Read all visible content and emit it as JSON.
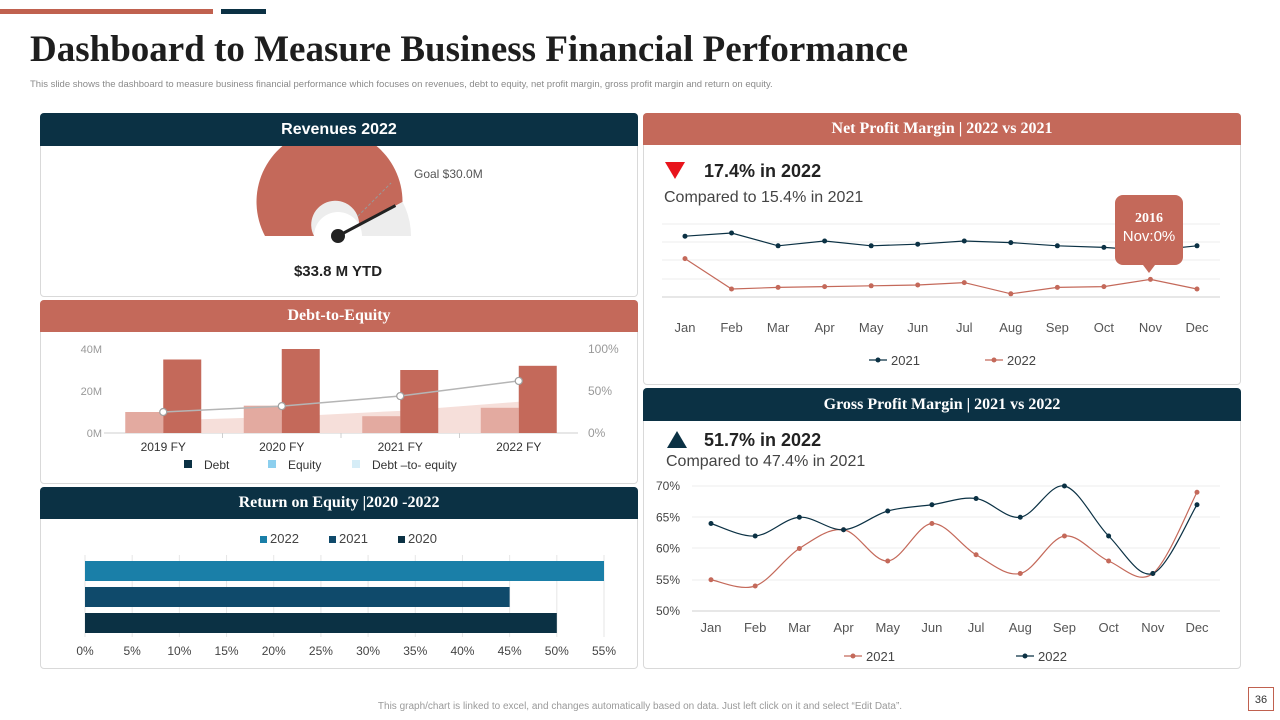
{
  "header": {
    "title": "Dashboard to Measure Business Financial Performance",
    "subtitle": "This slide shows the dashboard to measure business financial performance which focuses on revenues, debt to equity, net profit margin, gross profit margin and return on equity."
  },
  "footer": {
    "note": "This graph/chart is linked to excel, and changes automatically based on data. Just left click on it and select “Edit Data”.",
    "page_number": "36"
  },
  "colors": {
    "navy": "#0b3144",
    "rust": "#c4695a",
    "light_rust": "#e3aaa0",
    "pale_rust": "#f2d6d0",
    "blue": "#1a7fa8",
    "mid_navy": "#0f4a6b",
    "gray": "#ededed"
  },
  "revenues": {
    "heading": "Revenues 2022",
    "goal_label": "Goal $30.0M",
    "ytd_label": "$33.8 M YTD",
    "gauge_value": 33.8,
    "gauge_max": 40,
    "goal_value": 30.0
  },
  "debt_equity": {
    "heading": "Debt-to-Equity",
    "chart_data": {
      "type": "bar",
      "categories": [
        "2019 FY",
        "2020 FY",
        "2021 FY",
        "2022 FY"
      ],
      "series": [
        {
          "name": "Debt",
          "values": [
            35,
            40,
            30,
            32
          ]
        },
        {
          "name": "Equity",
          "values": [
            10,
            13,
            8,
            12
          ]
        },
        {
          "name": "Debt –to- equity",
          "values": [
            25,
            32,
            44,
            62
          ],
          "axis": "right"
        }
      ],
      "left_axis": {
        "ticks": [
          "0M",
          "20M",
          "40M"
        ],
        "ylim": [
          0,
          40
        ]
      },
      "right_axis": {
        "ticks": [
          "0%",
          "50%",
          "100%"
        ],
        "ylim": [
          0,
          100
        ]
      },
      "legend": [
        "Debt",
        "Equity",
        "Debt –to- equity"
      ]
    }
  },
  "roe": {
    "heading": "Return on Equity |2020 -2022",
    "chart_data": {
      "type": "bar",
      "orientation": "horizontal",
      "series": [
        {
          "name": "2022",
          "value": 55
        },
        {
          "name": "2021",
          "value": 45
        },
        {
          "name": "2020",
          "value": 50
        }
      ],
      "xlim": [
        0,
        55
      ],
      "x_ticks": [
        "0%",
        "5%",
        "10%",
        "15%",
        "20%",
        "25%",
        "30%",
        "35%",
        "40%",
        "45%",
        "50%",
        "55%"
      ],
      "legend": [
        "2022",
        "2021",
        "2020"
      ]
    }
  },
  "net_profit": {
    "heading": "Net Profit Margin | 2022 vs 2021",
    "kpi": "17.4% in 2022",
    "compare": "Compared to 15.4% in 2021",
    "tooltip_title": "2016",
    "tooltip_value": "Nov:0%",
    "chart_data": {
      "type": "line",
      "categories": [
        "Jan",
        "Feb",
        "Mar",
        "Apr",
        "May",
        "Jun",
        "Jul",
        "Aug",
        "Sep",
        "Oct",
        "Nov",
        "Dec"
      ],
      "series": [
        {
          "name": "2021",
          "values": [
            38,
            40,
            32,
            35,
            32,
            33,
            35,
            34,
            32,
            31,
            29,
            32
          ]
        },
        {
          "name": "2022",
          "values": [
            24,
            5,
            6,
            6.5,
            7,
            7.5,
            9,
            2,
            6,
            6.5,
            11,
            5
          ]
        }
      ],
      "ylim": [
        0,
        55
      ],
      "legend": [
        "2021",
        "2022"
      ]
    }
  },
  "gross_profit": {
    "heading": "Gross Profit Margin | 2021 vs 2022",
    "kpi": "51.7% in 2022",
    "compare": "Compared to 47.4% in 2021",
    "chart_data": {
      "type": "line",
      "categories": [
        "Jan",
        "Feb",
        "Mar",
        "Apr",
        "May",
        "Jun",
        "Jul",
        "Aug",
        "Sep",
        "Oct",
        "Nov",
        "Dec"
      ],
      "series": [
        {
          "name": "2021",
          "values": [
            55,
            54,
            60,
            63,
            58,
            64,
            59,
            56,
            62,
            58,
            56,
            69
          ]
        },
        {
          "name": "2022",
          "values": [
            64,
            62,
            65,
            63,
            66,
            67,
            68,
            65,
            70,
            62,
            56,
            67
          ]
        }
      ],
      "ylim": [
        50,
        70
      ],
      "y_ticks": [
        "50%",
        "55%",
        "60%",
        "65%",
        "70%"
      ],
      "legend": [
        "2021",
        "2022"
      ]
    }
  }
}
